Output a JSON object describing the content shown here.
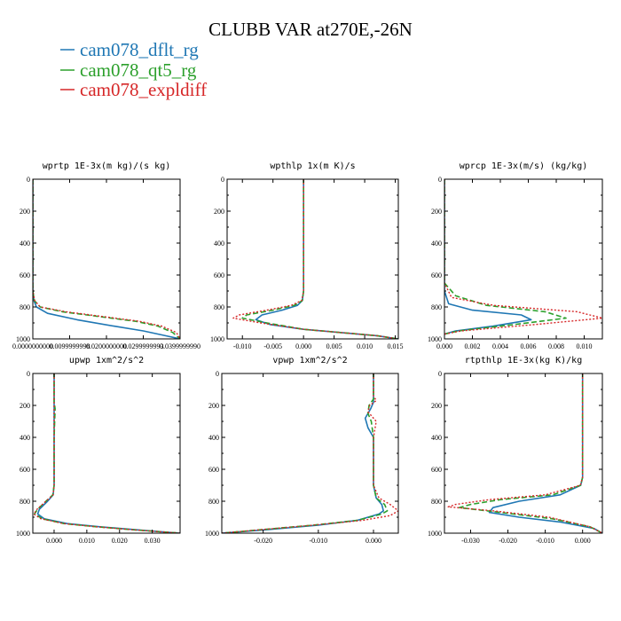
{
  "title": "CLUBB VAR at270E,-26N",
  "legend": [
    {
      "name": "cam078_dflt_rg",
      "color": "#1f77b4"
    },
    {
      "name": "cam078_qt5_rg",
      "color": "#2ca02c"
    },
    {
      "name": "cam078_expldiff",
      "color": "#d62728"
    }
  ],
  "chart_data": [
    {
      "type": "line",
      "title": "wprtp  1E-3x(m kg)/(s kg)",
      "xlim": [
        0,
        0.04
      ],
      "ylim": [
        1000,
        0
      ],
      "xticks": [
        0,
        0.01,
        0.02,
        0.03,
        0.04
      ],
      "xtick_labels": [
        "0.0000000000",
        "0.0099999998",
        "0.0200000000",
        "0.0299999993",
        "0.0399999990"
      ],
      "yticks": [
        0,
        200,
        400,
        600,
        800,
        1000
      ],
      "ytick_labels": [
        "0",
        "200",
        "400",
        "600",
        "800",
        "1000"
      ],
      "series": [
        {
          "name": "cam078_dflt_rg",
          "x": [
            0,
            0,
            0,
            0.0003,
            0.001,
            0.004,
            0.012,
            0.022,
            0.03,
            0.036,
            0.04
          ],
          "y": [
            0,
            500,
            700,
            760,
            800,
            840,
            880,
            920,
            950,
            980,
            1000
          ]
        },
        {
          "name": "cam078_qt5_rg",
          "x": [
            0,
            0,
            0,
            0.0004,
            0.002,
            0.008,
            0.018,
            0.028,
            0.034,
            0.038,
            0.04
          ],
          "y": [
            0,
            500,
            700,
            760,
            800,
            830,
            860,
            890,
            920,
            960,
            1000
          ]
        },
        {
          "name": "cam078_expldiff",
          "x": [
            0,
            0,
            0,
            0.0005,
            0.002,
            0.009,
            0.019,
            0.029,
            0.035,
            0.039,
            0.04
          ],
          "y": [
            0,
            500,
            700,
            760,
            800,
            830,
            860,
            890,
            920,
            960,
            1000
          ]
        }
      ]
    },
    {
      "type": "line",
      "title": "wpthlp  1x(m K)/s",
      "xlim": [
        -0.0125,
        0.0155
      ],
      "ylim": [
        1000,
        0
      ],
      "xticks": [
        -0.01,
        -0.005,
        0,
        0.005,
        0.01,
        0.015
      ],
      "xtick_labels": [
        "-0.010",
        "-0.005",
        "0.000",
        "0.005",
        "0.010",
        "0.015"
      ],
      "yticks": [
        0,
        200,
        400,
        600,
        800,
        1000
      ],
      "ytick_labels": [
        "0",
        "200",
        "400",
        "600",
        "800",
        "1000"
      ],
      "series": [
        {
          "name": "cam078_dflt_rg",
          "x": [
            0,
            0,
            0,
            -0.0002,
            -0.001,
            -0.0035,
            -0.0068,
            -0.0078,
            -0.0055,
            0.0,
            0.006,
            0.012,
            0.0155
          ],
          "y": [
            0,
            500,
            700,
            760,
            790,
            820,
            850,
            880,
            910,
            940,
            960,
            980,
            1000
          ]
        },
        {
          "name": "cam078_qt5_rg",
          "x": [
            0,
            0,
            0,
            -0.0002,
            -0.0015,
            -0.005,
            -0.0093,
            -0.01,
            -0.006,
            0.0,
            0.006,
            0.012,
            0.0155
          ],
          "y": [
            0,
            500,
            700,
            760,
            790,
            820,
            850,
            870,
            900,
            940,
            960,
            980,
            1000
          ]
        },
        {
          "name": "cam078_expldiff",
          "x": [
            0,
            0,
            0,
            -0.0003,
            -0.002,
            -0.006,
            -0.0105,
            -0.0115,
            -0.007,
            0.0,
            0.006,
            0.012,
            0.0155
          ],
          "y": [
            0,
            500,
            700,
            760,
            790,
            820,
            850,
            870,
            900,
            940,
            960,
            980,
            1000
          ]
        }
      ]
    },
    {
      "type": "line",
      "title": "wprcp  1E-3x(m/s) (kg/kg)",
      "xlim": [
        0,
        0.0113
      ],
      "ylim": [
        1000,
        0
      ],
      "xticks": [
        0,
        0.002,
        0.004,
        0.006,
        0.008,
        0.01
      ],
      "xtick_labels": [
        "0.000",
        "0.002",
        "0.004",
        "0.006",
        "0.008",
        "0.010"
      ],
      "yticks": [
        0,
        200,
        400,
        600,
        800,
        1000
      ],
      "ytick_labels": [
        "0",
        "200",
        "400",
        "600",
        "800",
        "1000"
      ],
      "series": [
        {
          "name": "cam078_dflt_rg",
          "x": [
            0,
            0,
            0.0003,
            0.002,
            0.0055,
            0.0062,
            0.0035,
            0.0008,
            0
          ],
          "y": [
            0,
            700,
            780,
            820,
            850,
            880,
            920,
            950,
            970
          ]
        },
        {
          "name": "cam078_qt5_rg",
          "x": [
            0,
            0,
            0.0008,
            0.003,
            0.0072,
            0.0087,
            0.005,
            0.001,
            0
          ],
          "y": [
            0,
            650,
            730,
            790,
            830,
            870,
            910,
            950,
            970
          ]
        },
        {
          "name": "cam078_expldiff",
          "x": [
            0,
            0,
            0.0005,
            0.0035,
            0.0095,
            0.0113,
            0.0065,
            0.0012,
            0
          ],
          "y": [
            0,
            650,
            740,
            790,
            830,
            870,
            910,
            950,
            970
          ]
        }
      ]
    },
    {
      "type": "line",
      "title": "upwp  1xm^2/s^2",
      "xlim": [
        -0.0065,
        0.0385
      ],
      "ylim": [
        1000,
        0
      ],
      "xticks": [
        0,
        0.01,
        0.02,
        0.03
      ],
      "xtick_labels": [
        "0.000",
        "0.010",
        "0.020",
        "0.030"
      ],
      "yticks": [
        0,
        200,
        400,
        600,
        800,
        1000
      ],
      "ytick_labels": [
        "0",
        "200",
        "400",
        "600",
        "800",
        "1000"
      ],
      "series": [
        {
          "name": "cam078_dflt_rg",
          "x": [
            0,
            0,
            0,
            0,
            -0.0003,
            -0.002,
            -0.0045,
            -0.005,
            -0.003,
            0.004,
            0.014,
            0.026,
            0.0385
          ],
          "y": [
            0,
            200,
            400,
            700,
            760,
            800,
            850,
            880,
            910,
            940,
            960,
            980,
            1000
          ]
        },
        {
          "name": "cam078_qt5_rg",
          "x": [
            0,
            0,
            0.0003,
            0,
            0,
            -0.0004,
            -0.0025,
            -0.005,
            -0.006,
            -0.0035,
            0.003,
            0.013,
            0.025,
            0.0385
          ],
          "y": [
            0,
            180,
            220,
            400,
            700,
            760,
            800,
            850,
            880,
            910,
            940,
            960,
            980,
            1000
          ]
        },
        {
          "name": "cam078_expldiff",
          "x": [
            0,
            0,
            0,
            0,
            -0.0003,
            -0.0025,
            -0.0052,
            -0.0062,
            -0.004,
            0.003,
            0.013,
            0.025,
            0.0385
          ],
          "y": [
            0,
            200,
            400,
            700,
            760,
            800,
            850,
            880,
            910,
            940,
            960,
            980,
            1000
          ]
        }
      ]
    },
    {
      "type": "line",
      "title": "vpwp  1xm^2/s^2",
      "xlim": [
        -0.0275,
        0.0045
      ],
      "ylim": [
        1000,
        0
      ],
      "xticks": [
        -0.02,
        -0.01,
        0
      ],
      "xtick_labels": [
        "-0.020",
        "-0.010",
        "0.000"
      ],
      "yticks": [
        0,
        200,
        400,
        600,
        800,
        1000
      ],
      "ytick_labels": [
        "0",
        "200",
        "400",
        "600",
        "800",
        "1000"
      ],
      "series": [
        {
          "name": "cam078_dflt_rg",
          "x": [
            0,
            0,
            -0.0005,
            -0.0015,
            -0.001,
            0,
            0,
            0.0005,
            0.0015,
            0.0018,
            0.001,
            -0.003,
            -0.01,
            -0.02,
            -0.0275
          ],
          "y": [
            0,
            180,
            220,
            280,
            340,
            400,
            700,
            780,
            820,
            860,
            880,
            920,
            950,
            980,
            1000
          ]
        },
        {
          "name": "cam078_qt5_rg",
          "x": [
            0,
            0,
            -0.0008,
            -0.001,
            -0.0004,
            0,
            0,
            0.0005,
            0.002,
            0.0025,
            0.0015,
            -0.003,
            -0.011,
            -0.021,
            -0.0275
          ],
          "y": [
            0,
            160,
            200,
            250,
            300,
            400,
            700,
            780,
            820,
            860,
            880,
            920,
            950,
            980,
            1000
          ]
        },
        {
          "name": "cam078_expldiff",
          "x": [
            0,
            0,
            0.0005,
            -0.0007,
            -0.001,
            0.0005,
            0,
            0,
            0.001,
            0.003,
            0.0045,
            0.003,
            -0.002,
            -0.011,
            -0.021,
            -0.0275
          ],
          "y": [
            0,
            140,
            170,
            200,
            240,
            300,
            400,
            700,
            780,
            820,
            860,
            890,
            920,
            950,
            980,
            1000
          ]
        }
      ]
    },
    {
      "type": "line",
      "title": "rtpthlp  1E-3x(kg K)/kg",
      "xlim": [
        -0.037,
        0.0053
      ],
      "ylim": [
        1000,
        0
      ],
      "xticks": [
        -0.03,
        -0.02,
        -0.01,
        0
      ],
      "xtick_labels": [
        "-0.030",
        "-0.020",
        "-0.010",
        "0.000"
      ],
      "yticks": [
        0,
        200,
        400,
        600,
        800,
        1000
      ],
      "ytick_labels": [
        "0",
        "200",
        "400",
        "600",
        "800",
        "1000"
      ],
      "series": [
        {
          "name": "cam078_dflt_rg",
          "x": [
            0,
            0,
            0,
            -0.0005,
            -0.006,
            -0.017,
            -0.024,
            -0.025,
            -0.017,
            -0.006,
            0.003,
            0.0053
          ],
          "y": [
            0,
            500,
            650,
            700,
            760,
            800,
            840,
            870,
            900,
            930,
            970,
            1000
          ]
        },
        {
          "name": "cam078_qt5_rg",
          "x": [
            0,
            0,
            0,
            -0.0005,
            -0.008,
            -0.022,
            -0.03,
            -0.033,
            -0.022,
            -0.008,
            0.002,
            0.0053
          ],
          "y": [
            0,
            500,
            650,
            700,
            760,
            790,
            820,
            840,
            870,
            910,
            960,
            1000
          ]
        },
        {
          "name": "cam078_expldiff",
          "x": [
            0,
            0,
            0,
            -0.0006,
            -0.01,
            -0.025,
            -0.034,
            -0.036,
            -0.024,
            -0.009,
            0.002,
            0.0053
          ],
          "y": [
            0,
            500,
            650,
            700,
            760,
            790,
            820,
            835,
            860,
            900,
            960,
            1000
          ]
        }
      ]
    }
  ]
}
